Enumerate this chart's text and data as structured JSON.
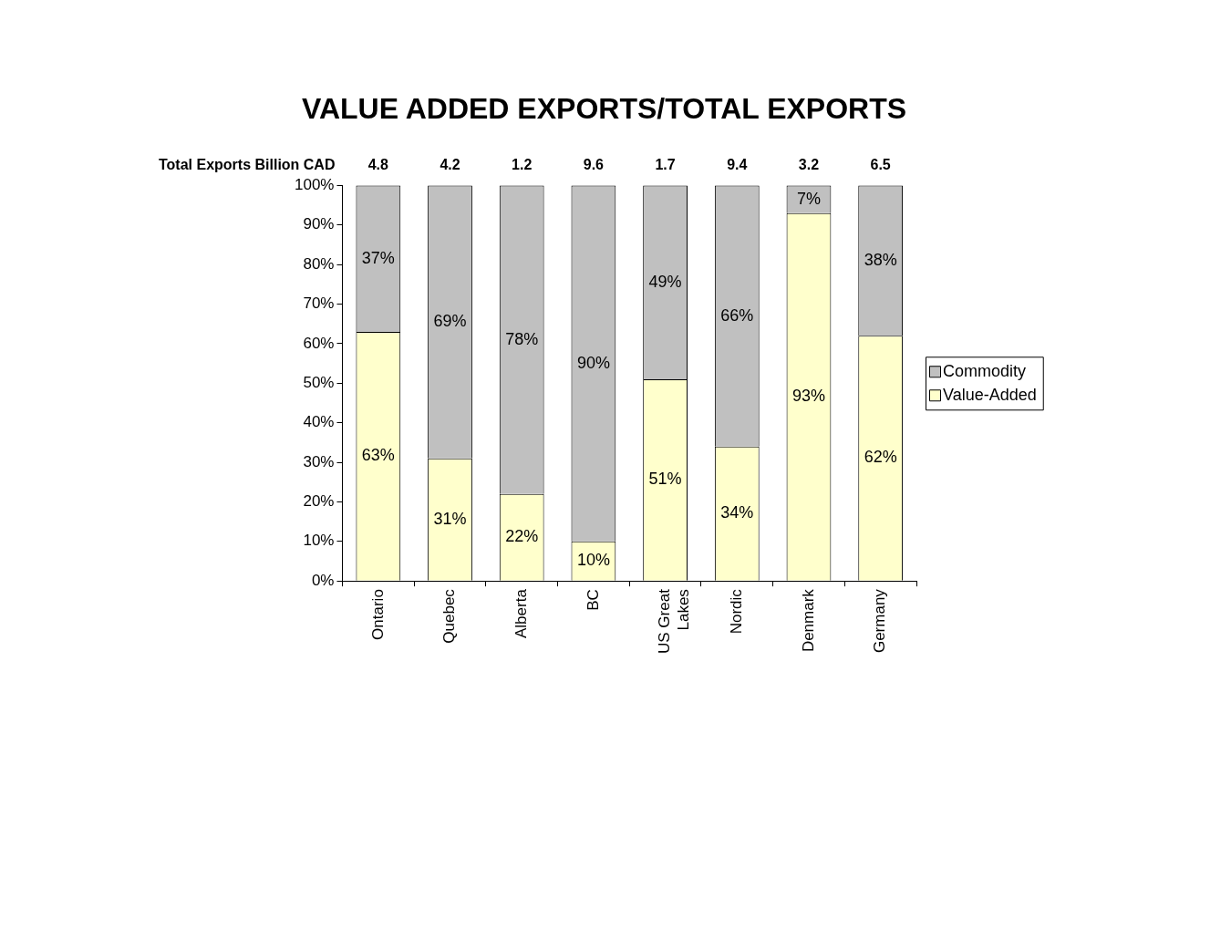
{
  "chart_data": {
    "type": "bar",
    "title": "VALUE ADDED EXPORTS/TOTAL EXPORTS",
    "categories": [
      "Ontario",
      "Quebec",
      "Alberta",
      "BC",
      "US Great Lakes",
      "Nordic",
      "Denmark",
      "Germany"
    ],
    "stacked": true,
    "series": [
      {
        "name": "Value-Added",
        "color": "#ffffcc",
        "values": [
          63,
          31,
          22,
          10,
          51,
          34,
          93,
          62
        ],
        "value_labels": [
          "63%",
          "31%",
          "22%",
          "10%",
          "51%",
          "34%",
          "93%",
          "62%"
        ]
      },
      {
        "name": "Commodity",
        "color": "#c0c0c0",
        "values": [
          37,
          69,
          78,
          90,
          49,
          66,
          7,
          38
        ],
        "value_labels": [
          "37%",
          "69%",
          "78%",
          "90%",
          "49%",
          "66%",
          "7%",
          "38%"
        ]
      }
    ],
    "ylim": [
      0,
      100
    ],
    "yticks": [
      {
        "value": 0,
        "label": "0%"
      },
      {
        "value": 10,
        "label": "10%"
      },
      {
        "value": 20,
        "label": "20%"
      },
      {
        "value": 30,
        "label": "30%"
      },
      {
        "value": 40,
        "label": "40%"
      },
      {
        "value": 50,
        "label": "50%"
      },
      {
        "value": 60,
        "label": "60%"
      },
      {
        "value": 70,
        "label": "70%"
      },
      {
        "value": 80,
        "label": "80%"
      },
      {
        "value": 90,
        "label": "90%"
      },
      {
        "value": 100,
        "label": "100%"
      }
    ],
    "grid": false,
    "legend": "right",
    "annotations": [
      "Total Exports Billion CAD",
      "4.8",
      "4.2",
      "1.2",
      "9.6",
      "1.7",
      "9.4",
      "3.2",
      "6.5"
    ]
  }
}
